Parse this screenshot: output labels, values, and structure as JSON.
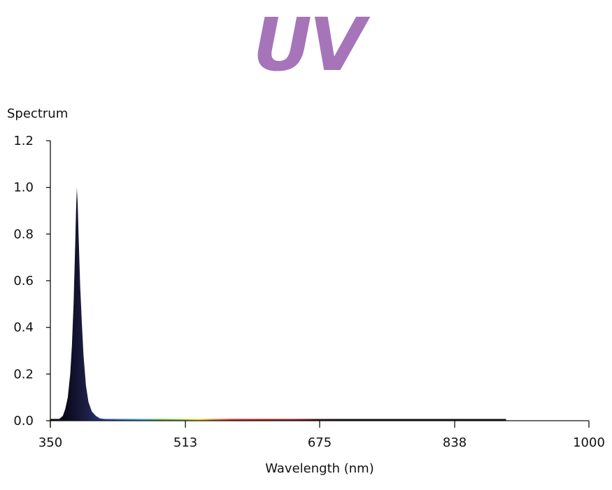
{
  "logo": {
    "text": "UV",
    "color": "#a674b8"
  },
  "chart_data": {
    "type": "area",
    "title": "",
    "ylabel": "Spectrum",
    "xlabel": "Wavelength (nm)",
    "xlim": [
      350,
      1000
    ],
    "ylim": [
      0,
      1.2
    ],
    "x_ticks": [
      350,
      513,
      675,
      838,
      1000
    ],
    "x_tick_labels": [
      "350",
      "513",
      "675",
      "838",
      "1000"
    ],
    "y_ticks": [
      0,
      0.2,
      0.4,
      0.6,
      0.8,
      1.0,
      1.2
    ],
    "y_tick_labels": [
      "0.0",
      "0.2",
      "0.4",
      "0.6",
      "0.8",
      "1.0",
      "1.2"
    ],
    "grid": false,
    "legend": "none",
    "series": [
      {
        "x": [
          350,
          360,
          365,
          368,
          371,
          374,
          376,
          378,
          380,
          381,
          382,
          383,
          384,
          386,
          388,
          390,
          393,
          396,
          400,
          405,
          410,
          420,
          450,
          500,
          600,
          700,
          800,
          860,
          880,
          900,
          1000
        ],
        "y": [
          0,
          0.005,
          0.02,
          0.05,
          0.1,
          0.2,
          0.32,
          0.5,
          0.75,
          0.9,
          1.0,
          0.93,
          0.8,
          0.58,
          0.42,
          0.28,
          0.15,
          0.08,
          0.04,
          0.02,
          0.01,
          0.006,
          0.004,
          0.003,
          0.003,
          0.002,
          0.002,
          0.004,
          0.004,
          0,
          0
        ]
      }
    ]
  }
}
